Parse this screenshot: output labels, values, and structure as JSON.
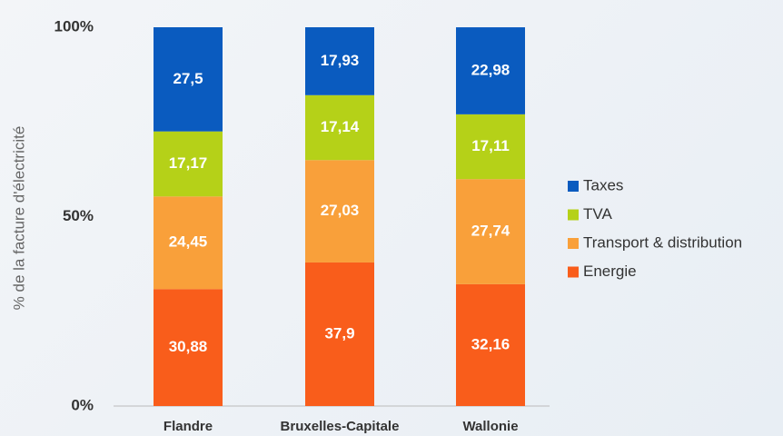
{
  "chart_data": {
    "type": "stacked_bar",
    "ylabel": "% de la facture d'électricité",
    "categories": [
      "Flandre",
      "Bruxelles-Capitale",
      "Wallonie"
    ],
    "series": [
      {
        "name": "Energie",
        "color": "#f95d1b",
        "values": [
          30.88,
          37.9,
          32.16
        ],
        "value_labels": [
          "30,88",
          "37,9",
          "32,16"
        ]
      },
      {
        "name": "Transport & distribution",
        "color": "#f9a03a",
        "values": [
          24.45,
          27.03,
          27.74
        ],
        "value_labels": [
          "24,45",
          "27,03",
          "27,74"
        ]
      },
      {
        "name": "TVA",
        "color": "#b5d118",
        "values": [
          17.17,
          17.14,
          17.11
        ],
        "value_labels": [
          "17,17",
          "17,14",
          "17,11"
        ]
      },
      {
        "name": "Taxes",
        "color": "#0a5bbf",
        "values": [
          27.5,
          17.93,
          22.98
        ],
        "value_labels": [
          "27,5",
          "17,93",
          "22,98"
        ]
      }
    ],
    "ylim": [
      0,
      100
    ],
    "yticks": [
      {
        "value": 0,
        "label": "0%"
      },
      {
        "value": 50,
        "label": "50%"
      },
      {
        "value": 100,
        "label": "100%"
      }
    ],
    "legend": "right"
  }
}
